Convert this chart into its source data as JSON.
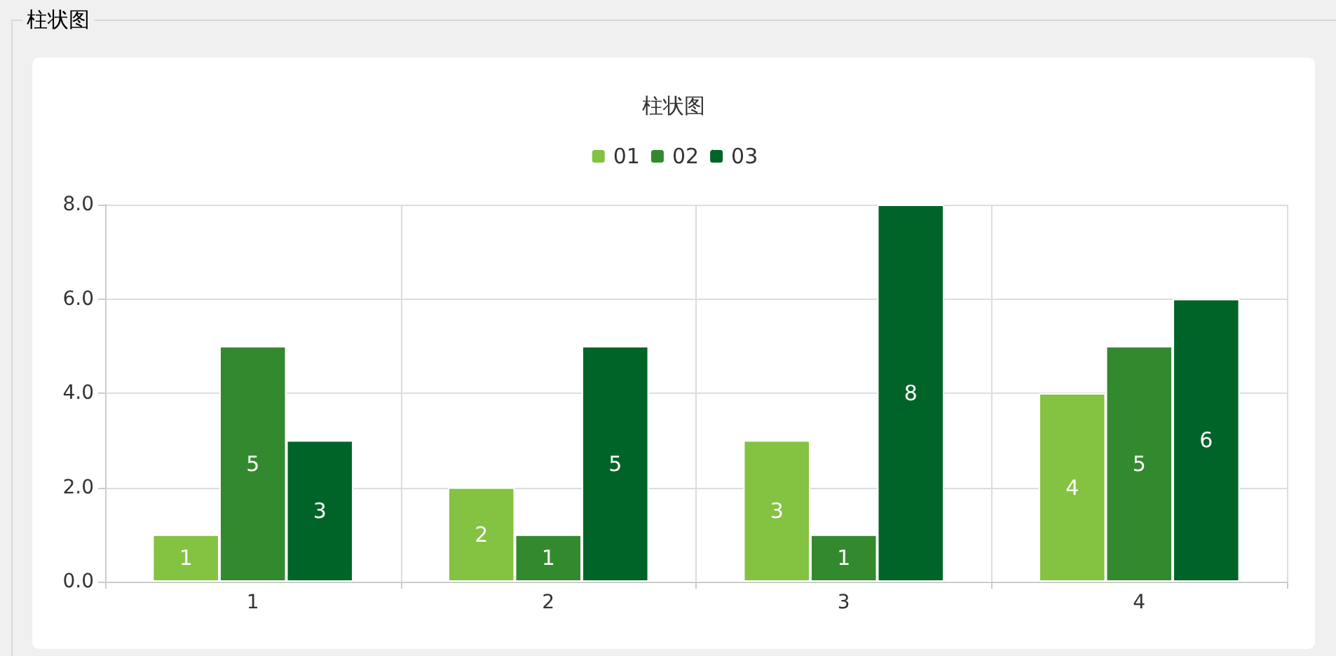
{
  "chart_data": {
    "type": "bar",
    "title": "柱状图",
    "annotations": [
      "柱状图"
    ],
    "categories": [
      "1",
      "2",
      "3",
      "4"
    ],
    "series": [
      {
        "name": "01",
        "color": "#84c241",
        "values": [
          1,
          2,
          3,
          4
        ]
      },
      {
        "name": "02",
        "color": "#338a2e",
        "values": [
          5,
          1,
          1,
          5
        ]
      },
      {
        "name": "03",
        "color": "#006428",
        "values": [
          3,
          5,
          8,
          6
        ]
      }
    ],
    "ylim": [
      0,
      8
    ],
    "yticks": [
      {
        "value": 0,
        "label": "0.0"
      },
      {
        "value": 2,
        "label": "2.0"
      },
      {
        "value": 4,
        "label": "4.0"
      },
      {
        "value": 6,
        "label": "6.0"
      },
      {
        "value": 8,
        "label": "8.0"
      }
    ],
    "grid": true,
    "legend": "top",
    "data_labels": true
  }
}
